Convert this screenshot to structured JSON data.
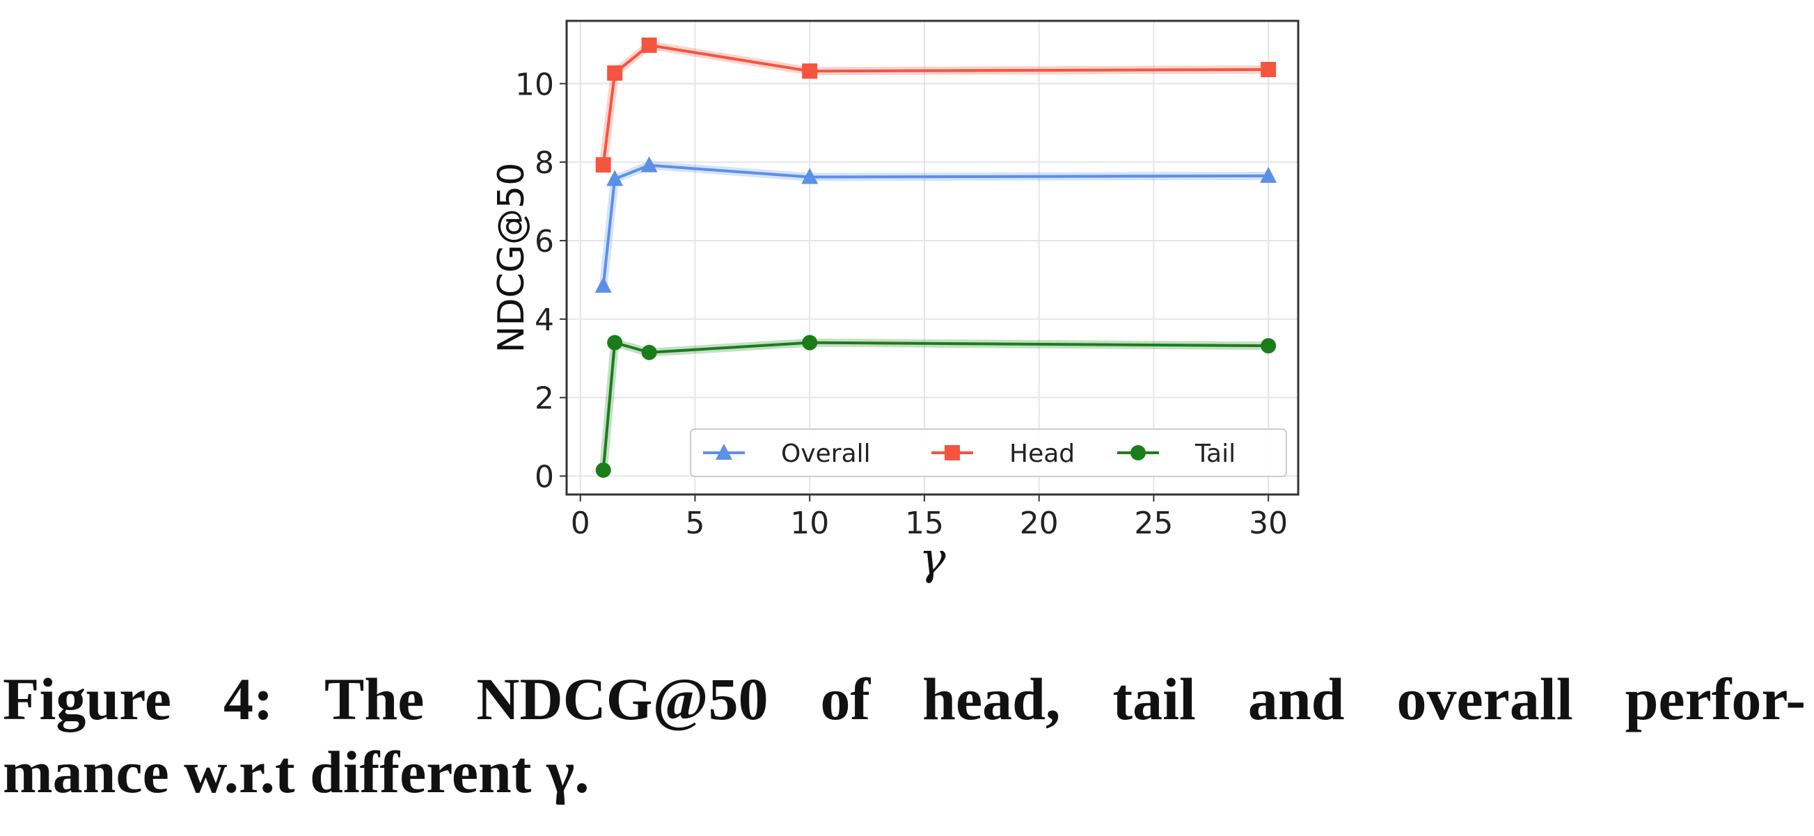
{
  "chart_data": {
    "type": "line",
    "title": "",
    "xlabel": "γ",
    "ylabel": "NDCG@50",
    "xlim": [
      -0.6,
      31.3
    ],
    "ylim": [
      -0.47,
      11.6
    ],
    "xticks": [
      0,
      5,
      10,
      15,
      20,
      25,
      30
    ],
    "yticks": [
      0,
      2,
      4,
      6,
      8,
      10
    ],
    "grid": true,
    "legend_placement": "lower-right",
    "x": [
      1,
      1.5,
      3,
      10,
      30
    ],
    "series": [
      {
        "name": "Overall",
        "color": "#5b8fe8",
        "marker": "triangle",
        "values": [
          4.85,
          7.57,
          7.92,
          7.62,
          7.65
        ]
      },
      {
        "name": "Head",
        "color": "#f5543f",
        "marker": "square",
        "values": [
          7.93,
          10.27,
          10.98,
          10.32,
          10.36
        ]
      },
      {
        "name": "Tail",
        "color": "#1a7d1a",
        "marker": "circle",
        "values": [
          0.15,
          3.4,
          3.15,
          3.4,
          3.32
        ]
      }
    ]
  },
  "caption": {
    "line1": "Figure 4: The NDCG@50 of head, tail and overall perfor-",
    "line2": "mance w.r.t different γ."
  }
}
